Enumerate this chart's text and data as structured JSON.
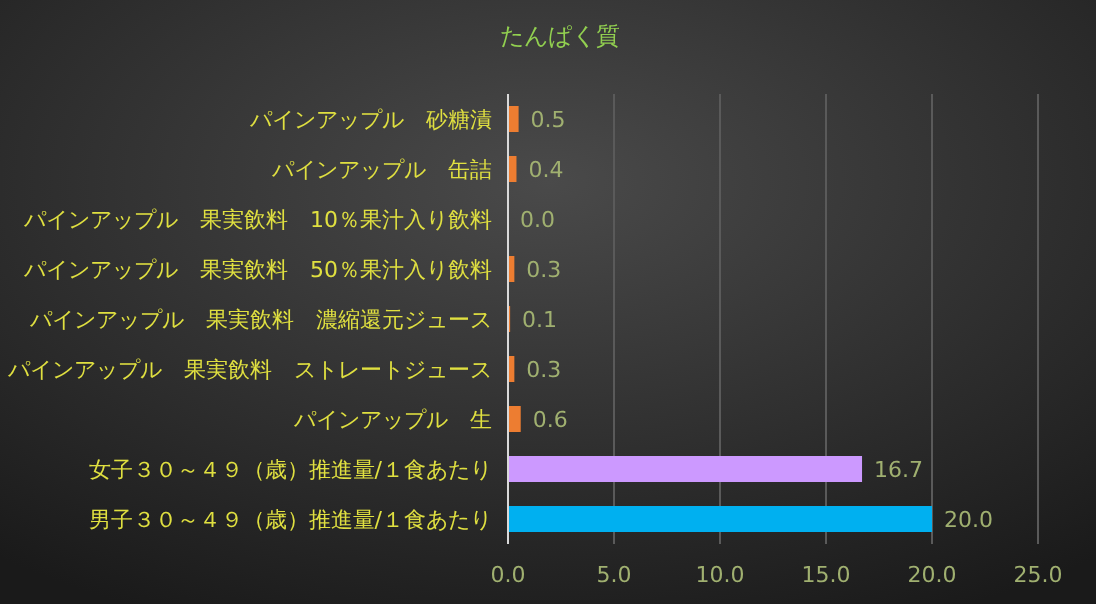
{
  "chart_data": {
    "type": "bar",
    "orientation": "horizontal",
    "title": "たんぱく質",
    "categories": [
      "パインアップル　砂糖漬",
      "パインアップル　缶詰",
      "パインアップル　果実飲料　10％果汁入り飲料",
      "パインアップル　果実飲料　50％果汁入り飲料",
      "パインアップル　果実飲料　濃縮還元ジュース",
      "パインアップル　果実飲料　ストレートジュース",
      "パインアップル　生",
      "女子３０～４９（歳）推進量/１食あたり",
      "男子３０～４９（歳）推進量/１食あたり"
    ],
    "values": [
      0.5,
      0.4,
      0.0,
      0.3,
      0.1,
      0.3,
      0.6,
      16.7,
      20.0
    ],
    "colors": [
      "#ed7d31",
      "#ed7d31",
      "#ed7d31",
      "#ed7d31",
      "#ed7d31",
      "#ed7d31",
      "#ed7d31",
      "#cc99ff",
      "#00b0f0"
    ],
    "value_labels": [
      "0.5",
      "0.4",
      "0.0",
      "0.3",
      "0.1",
      "0.3",
      "0.6",
      "16.7",
      "20.0"
    ],
    "xlim": [
      0,
      25
    ],
    "xticks": [
      {
        "value": 0,
        "label": "0.0"
      },
      {
        "value": 5,
        "label": "5.0"
      },
      {
        "value": 10,
        "label": "10.0"
      },
      {
        "value": 15,
        "label": "15.0"
      },
      {
        "value": 20,
        "label": "20.0"
      },
      {
        "value": 25,
        "label": "25.0"
      }
    ],
    "grid": "x"
  }
}
